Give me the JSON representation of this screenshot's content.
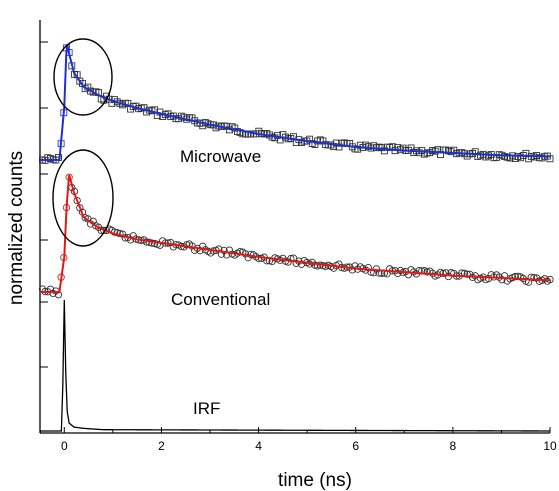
{
  "chart_data": {
    "type": "line",
    "xlabel": "time (ns)",
    "ylabel": "normalized counts",
    "xlim": [
      -0.5,
      10
    ],
    "x_ticks": [
      0,
      2,
      4,
      6,
      8,
      10
    ],
    "x_tick_labels": [
      "0",
      "2",
      "4",
      "6",
      "8",
      "10"
    ],
    "y_ticks_unlabeled": true,
    "colors": {
      "microwave_fit": "#1f2fd6",
      "conventional_fit": "#e01818",
      "data_markers": "#333333",
      "irf": "#000000"
    },
    "series": [
      {
        "name": "Microwave",
        "marker": "square",
        "fit_color": "#1f2fd6",
        "x": [
          -0.5,
          -0.1,
          0.0,
          0.05,
          0.1,
          0.2,
          0.4,
          0.7,
          1.0,
          1.5,
          2.0,
          3.0,
          4.0,
          5.0,
          6.0,
          7.0,
          8.0,
          9.0,
          10.0
        ],
        "values": [
          0.0,
          0.0,
          0.45,
          1.0,
          0.9,
          0.74,
          0.62,
          0.55,
          0.5,
          0.44,
          0.39,
          0.3,
          0.22,
          0.16,
          0.11,
          0.08,
          0.06,
          0.04,
          0.03
        ],
        "highlighted_region_x": [
          -0.3,
          0.8
        ]
      },
      {
        "name": "Conventional",
        "marker": "circle",
        "fit_color": "#e01818",
        "x": [
          -0.5,
          -0.1,
          0.0,
          0.05,
          0.1,
          0.2,
          0.4,
          0.7,
          1.0,
          1.5,
          2.0,
          3.0,
          4.0,
          5.0,
          6.0,
          7.0,
          8.0,
          9.0,
          10.0
        ],
        "values": [
          0.0,
          0.0,
          0.3,
          0.75,
          1.0,
          0.85,
          0.64,
          0.55,
          0.5,
          0.45,
          0.42,
          0.36,
          0.3,
          0.25,
          0.2,
          0.17,
          0.14,
          0.12,
          0.1
        ],
        "highlighted_region_x": [
          -0.3,
          0.8
        ]
      },
      {
        "name": "IRF",
        "marker": "none",
        "x": [
          -0.5,
          -0.06,
          -0.03,
          0.0,
          0.03,
          0.06,
          0.1,
          0.2,
          0.4,
          0.8,
          10.0
        ],
        "values": [
          0.0,
          0.0,
          0.35,
          1.0,
          0.45,
          0.15,
          0.06,
          0.03,
          0.02,
          0.01,
          0.0
        ]
      }
    ]
  }
}
